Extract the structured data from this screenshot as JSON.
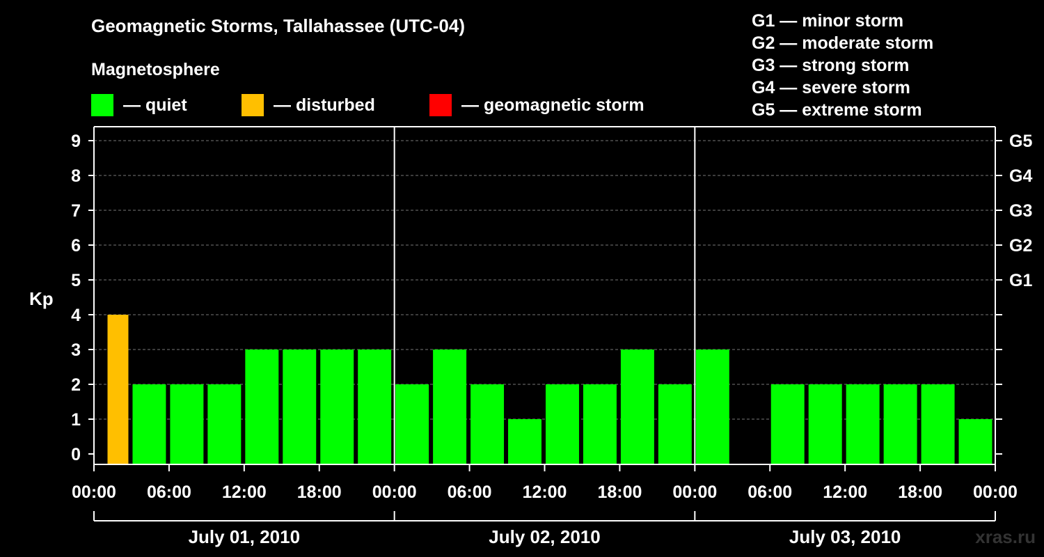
{
  "title": "Geomagnetic Storms, Tallahassee (UTC-04)",
  "magnetosphere_label": "Magnetosphere",
  "legend": [
    {
      "text": "— quiet",
      "color": "#00ff00"
    },
    {
      "text": "— disturbed",
      "color": "#ffbf00"
    },
    {
      "text": "— geomagnetic storm",
      "color": "#ff0000"
    }
  ],
  "g_levels": [
    "G1 — minor storm",
    "G2 — moderate storm",
    "G3 — strong storm",
    "G4 — severe storm",
    "G5 — extreme storm"
  ],
  "watermark": "xras.ru",
  "chart_data": {
    "type": "bar",
    "ylabel": "Kp",
    "ylim": [
      0,
      9
    ],
    "yticks": [
      0,
      1,
      2,
      3,
      4,
      5,
      6,
      7,
      8,
      9
    ],
    "right_ticks": [
      {
        "value": 5,
        "label": "G1"
      },
      {
        "value": 6,
        "label": "G2"
      },
      {
        "value": 7,
        "label": "G3"
      },
      {
        "value": 8,
        "label": "G4"
      },
      {
        "value": 9,
        "label": "G5"
      }
    ],
    "grid": true,
    "xticks": [
      "00:00",
      "06:00",
      "12:00",
      "18:00",
      "00:00",
      "06:00",
      "12:00",
      "18:00",
      "00:00",
      "06:00",
      "12:00",
      "18:00",
      "00:00"
    ],
    "days": [
      "July 01, 2010",
      "July 02, 2010",
      "July 03, 2010"
    ],
    "colors": {
      "quiet": "#00ff00",
      "disturbed": "#ffbf00",
      "storm": "#ff0000"
    },
    "bars": [
      {
        "start": "2010-07-01 01:00",
        "end": "2010-07-01 03:00",
        "kp": 4
      },
      {
        "start": "2010-07-01 03:00",
        "end": "2010-07-01 06:00",
        "kp": 2
      },
      {
        "start": "2010-07-01 06:00",
        "end": "2010-07-01 09:00",
        "kp": 2
      },
      {
        "start": "2010-07-01 09:00",
        "end": "2010-07-01 12:00",
        "kp": 2
      },
      {
        "start": "2010-07-01 12:00",
        "end": "2010-07-01 15:00",
        "kp": 3
      },
      {
        "start": "2010-07-01 15:00",
        "end": "2010-07-01 18:00",
        "kp": 3
      },
      {
        "start": "2010-07-01 18:00",
        "end": "2010-07-01 21:00",
        "kp": 3
      },
      {
        "start": "2010-07-01 21:00",
        "end": "2010-07-02 00:00",
        "kp": 3
      },
      {
        "start": "2010-07-02 00:00",
        "end": "2010-07-02 03:00",
        "kp": 2
      },
      {
        "start": "2010-07-02 03:00",
        "end": "2010-07-02 06:00",
        "kp": 3
      },
      {
        "start": "2010-07-02 06:00",
        "end": "2010-07-02 09:00",
        "kp": 2
      },
      {
        "start": "2010-07-02 09:00",
        "end": "2010-07-02 12:00",
        "kp": 1
      },
      {
        "start": "2010-07-02 12:00",
        "end": "2010-07-02 15:00",
        "kp": 2
      },
      {
        "start": "2010-07-02 15:00",
        "end": "2010-07-02 18:00",
        "kp": 2
      },
      {
        "start": "2010-07-02 18:00",
        "end": "2010-07-02 21:00",
        "kp": 3
      },
      {
        "start": "2010-07-02 21:00",
        "end": "2010-07-03 00:00",
        "kp": 2
      },
      {
        "start": "2010-07-03 00:00",
        "end": "2010-07-03 03:00",
        "kp": 3
      },
      {
        "start": "2010-07-03 06:00",
        "end": "2010-07-03 09:00",
        "kp": 2
      },
      {
        "start": "2010-07-03 09:00",
        "end": "2010-07-03 12:00",
        "kp": 2
      },
      {
        "start": "2010-07-03 12:00",
        "end": "2010-07-03 15:00",
        "kp": 2
      },
      {
        "start": "2010-07-03 15:00",
        "end": "2010-07-03 18:00",
        "kp": 2
      },
      {
        "start": "2010-07-03 18:00",
        "end": "2010-07-03 21:00",
        "kp": 2
      },
      {
        "start": "2010-07-03 21:00",
        "end": "2010-07-03 24:00",
        "kp": 1
      }
    ]
  }
}
